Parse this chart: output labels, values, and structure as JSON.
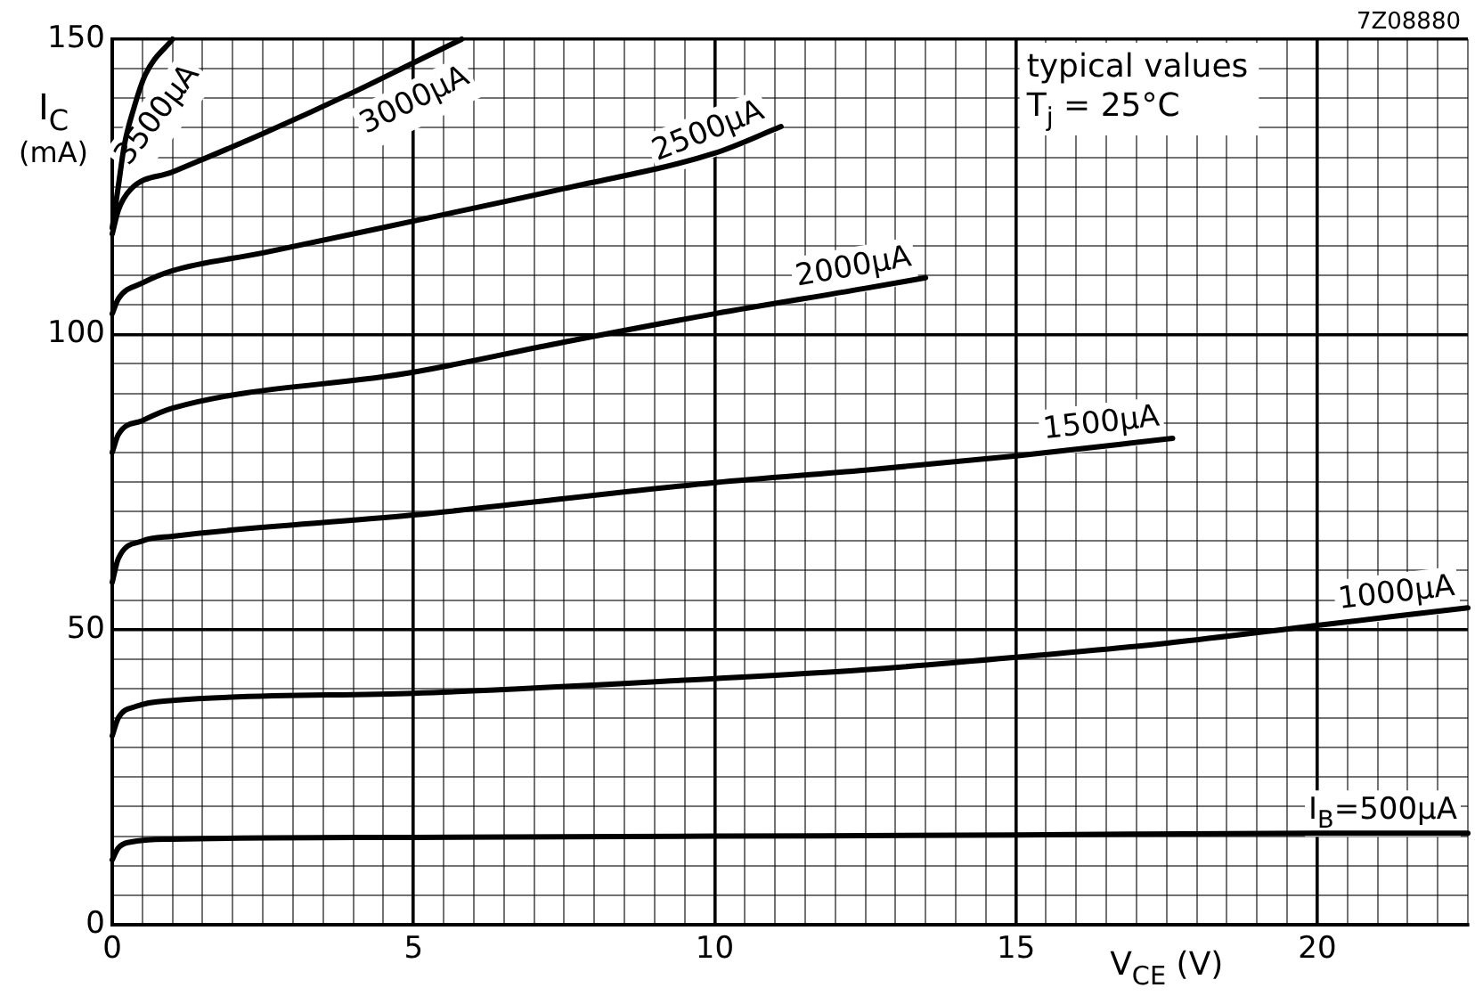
{
  "chart_data": {
    "type": "line",
    "xlabel": "V$_{CE}$ (V)",
    "ylabel": "I$_{C}$ (mA)",
    "annotations": [
      "7Z08880",
      "typical values",
      "T$_{j}$ = 25°C"
    ],
    "xlim": [
      0,
      22.5
    ],
    "ylim": [
      0,
      150
    ],
    "grid": true,
    "legend": false,
    "xticks": [
      0,
      {
        "value": 0.5,
        "label": null
      },
      {
        "value": 1,
        "label": null
      },
      {
        "value": 1.5,
        "label": null
      },
      {
        "value": 2,
        "label": null
      },
      {
        "value": 2.5,
        "label": null
      },
      {
        "value": 3,
        "label": null
      },
      {
        "value": 3.5,
        "label": null
      },
      {
        "value": 4,
        "label": null
      },
      {
        "value": 4.5,
        "label": null
      },
      5,
      {
        "value": 5.5,
        "label": null
      },
      {
        "value": 6,
        "label": null
      },
      {
        "value": 6.5,
        "label": null
      },
      {
        "value": 7,
        "label": null
      },
      {
        "value": 7.5,
        "label": null
      },
      {
        "value": 8,
        "label": null
      },
      {
        "value": 8.5,
        "label": null
      },
      {
        "value": 9,
        "label": null
      },
      {
        "value": 9.5,
        "label": null
      },
      10,
      {
        "value": 10.5,
        "label": null
      },
      {
        "value": 11,
        "label": null
      },
      {
        "value": 11.5,
        "label": null
      },
      {
        "value": 12,
        "label": null
      },
      {
        "value": 12.5,
        "label": null
      },
      {
        "value": 13,
        "label": null
      },
      {
        "value": 13.5,
        "label": null
      },
      {
        "value": 14,
        "label": null
      },
      {
        "value": 14.5,
        "label": null
      },
      15,
      {
        "value": 15.5,
        "label": null
      },
      {
        "value": 16,
        "label": null
      },
      {
        "value": 16.5,
        "label": null
      },
      {
        "value": 17,
        "label": null
      },
      {
        "value": 17.5,
        "label": null
      },
      {
        "value": 18,
        "label": null
      },
      {
        "value": 18.5,
        "label": null
      },
      {
        "value": 19,
        "label": null
      },
      {
        "value": 19.5,
        "label": null
      },
      20,
      {
        "value": 20.5,
        "label": null
      },
      {
        "value": 21,
        "label": null
      },
      {
        "value": 21.5,
        "label": null
      },
      {
        "value": 22,
        "label": null
      },
      {
        "value": 22.5,
        "label": null
      }
    ],
    "yticks": [
      0,
      {
        "value": 5,
        "label": null
      },
      {
        "value": 10,
        "label": null
      },
      {
        "value": 15,
        "label": null
      },
      {
        "value": 20,
        "label": null
      },
      {
        "value": 25,
        "label": null
      },
      {
        "value": 30,
        "label": null
      },
      {
        "value": 35,
        "label": null
      },
      {
        "value": 40,
        "label": null
      },
      {
        "value": 45,
        "label": null
      },
      50,
      {
        "value": 55,
        "label": null
      },
      {
        "value": 60,
        "label": null
      },
      {
        "value": 65,
        "label": null
      },
      {
        "value": 70,
        "label": null
      },
      {
        "value": 75,
        "label": null
      },
      {
        "value": 80,
        "label": null
      },
      {
        "value": 85,
        "label": null
      },
      {
        "value": 90,
        "label": null
      },
      {
        "value": 95,
        "label": null
      },
      100,
      {
        "value": 105,
        "label": null
      },
      {
        "value": 110,
        "label": null
      },
      {
        "value": 115,
        "label": null
      },
      {
        "value": 120,
        "label": null
      },
      {
        "value": 125,
        "label": null
      },
      {
        "value": 130,
        "label": null
      },
      {
        "value": 135,
        "label": null
      },
      {
        "value": 140,
        "label": null
      },
      {
        "value": 145,
        "label": null
      },
      150
    ],
    "series": [
      {
        "name": "I$_{B}$=500μA",
        "color": "#000000",
        "x": [
          0,
          0.1,
          0.3,
          1,
          5,
          10,
          15,
          20,
          22.5
        ],
        "values": [
          11,
          13,
          14,
          14.5,
          14.8,
          15,
          15.2,
          15.5,
          15.5
        ]
      },
      {
        "name": "1000μA",
        "color": "#000000",
        "x": [
          0,
          0.1,
          0.4,
          1,
          5,
          10,
          12.5,
          15,
          17.5,
          20,
          22.5
        ],
        "values": [
          32,
          35,
          37,
          38,
          39.2,
          41.7,
          43.2,
          45.3,
          47.7,
          50.7,
          53.7
        ]
      },
      {
        "name": "1500μA",
        "color": "#000000",
        "x": [
          0,
          0.1,
          0.5,
          1,
          5,
          10,
          12.5,
          15,
          17.6
        ],
        "values": [
          58,
          62,
          65,
          65.8,
          69.4,
          74.9,
          77,
          79.4,
          82.4
        ]
      },
      {
        "name": "2000μA",
        "color": "#000000",
        "x": [
          0,
          0.1,
          0.5,
          1,
          5,
          7.5,
          10,
          12.5,
          13.5
        ],
        "values": [
          80,
          83,
          85.4,
          87.5,
          93.6,
          98.7,
          103.5,
          107.8,
          109.6
        ]
      },
      {
        "name": "2500μA",
        "color": "#000000",
        "x": [
          0,
          0.1,
          0.5,
          1,
          2.5,
          5,
          7.5,
          10,
          11.1
        ],
        "values": [
          103.5,
          106,
          108.7,
          110.8,
          113.8,
          119.2,
          124.7,
          130.7,
          135.2
        ]
      },
      {
        "name": "3000μA",
        "color": "#000000",
        "x": [
          0,
          0.1,
          0.3,
          1,
          2.5,
          4,
          5,
          5.8
        ],
        "values": [
          117,
          121,
          124.5,
          127.5,
          134,
          141,
          146,
          150
        ]
      },
      {
        "name": "3500μA",
        "color": "#000000",
        "x": [
          0,
          0.1,
          0.2,
          0.35,
          0.55,
          1
        ],
        "values": [
          118,
          125,
          132,
          138,
          144,
          150
        ]
      }
    ]
  }
}
